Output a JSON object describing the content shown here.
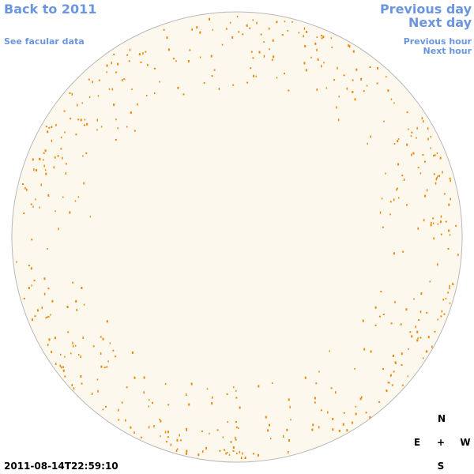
{
  "links": {
    "back": "Back to 2011",
    "facular": "See facular data",
    "previous_day": "Previous day",
    "next_day": "Next day",
    "previous_hour": "Previous hour",
    "next_hour": "Next hour"
  },
  "timestamp": "2011-08-14T22:59:10",
  "compass": {
    "north": "N",
    "east": "E",
    "center": "+",
    "west": "W",
    "south": "S"
  }
}
